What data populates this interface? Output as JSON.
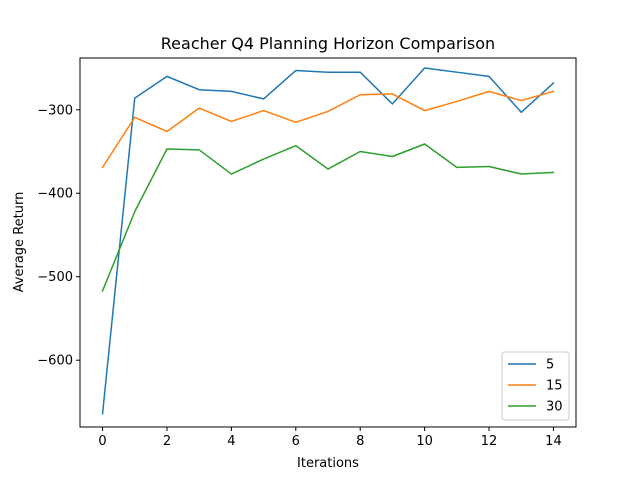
{
  "chart_data": {
    "type": "line",
    "title": "Reacher Q4 Planning Horizon Comparison",
    "xlabel": "Iterations",
    "ylabel": "Average Return",
    "xlim": [
      -0.7,
      14.7
    ],
    "ylim": [
      -680,
      -238
    ],
    "xticks": [
      0,
      2,
      4,
      6,
      8,
      10,
      12,
      14
    ],
    "xtick_labels": [
      "0",
      "2",
      "4",
      "6",
      "8",
      "10",
      "12",
      "14"
    ],
    "yticks": [
      -600,
      -500,
      -400,
      -300
    ],
    "ytick_labels": [
      "−600",
      "−500",
      "−400",
      "−300"
    ],
    "grid": false,
    "legend_position": "lower-right",
    "x": [
      0,
      1,
      2,
      3,
      4,
      5,
      6,
      7,
      8,
      9,
      10,
      11,
      12,
      13,
      14
    ],
    "series": [
      {
        "name": "5",
        "color": "#1f77b4",
        "values": [
          -664,
          -286,
          -260,
          -276,
          -278,
          -287,
          -253,
          -255,
          -255,
          -293,
          -250,
          -255,
          -260,
          -303,
          -268
        ]
      },
      {
        "name": "15",
        "color": "#ff7f0e",
        "values": [
          -369,
          -309,
          -326,
          -298,
          -314,
          -301,
          -315,
          -302,
          -282,
          -281,
          -301,
          -290,
          -278,
          -289,
          -278
        ]
      },
      {
        "name": "30",
        "color": "#2ca02c",
        "values": [
          -517,
          -422,
          -347,
          -348,
          -377,
          -359,
          -343,
          -371,
          -350,
          -356,
          -341,
          -369,
          -368,
          -377,
          -375
        ]
      }
    ]
  }
}
